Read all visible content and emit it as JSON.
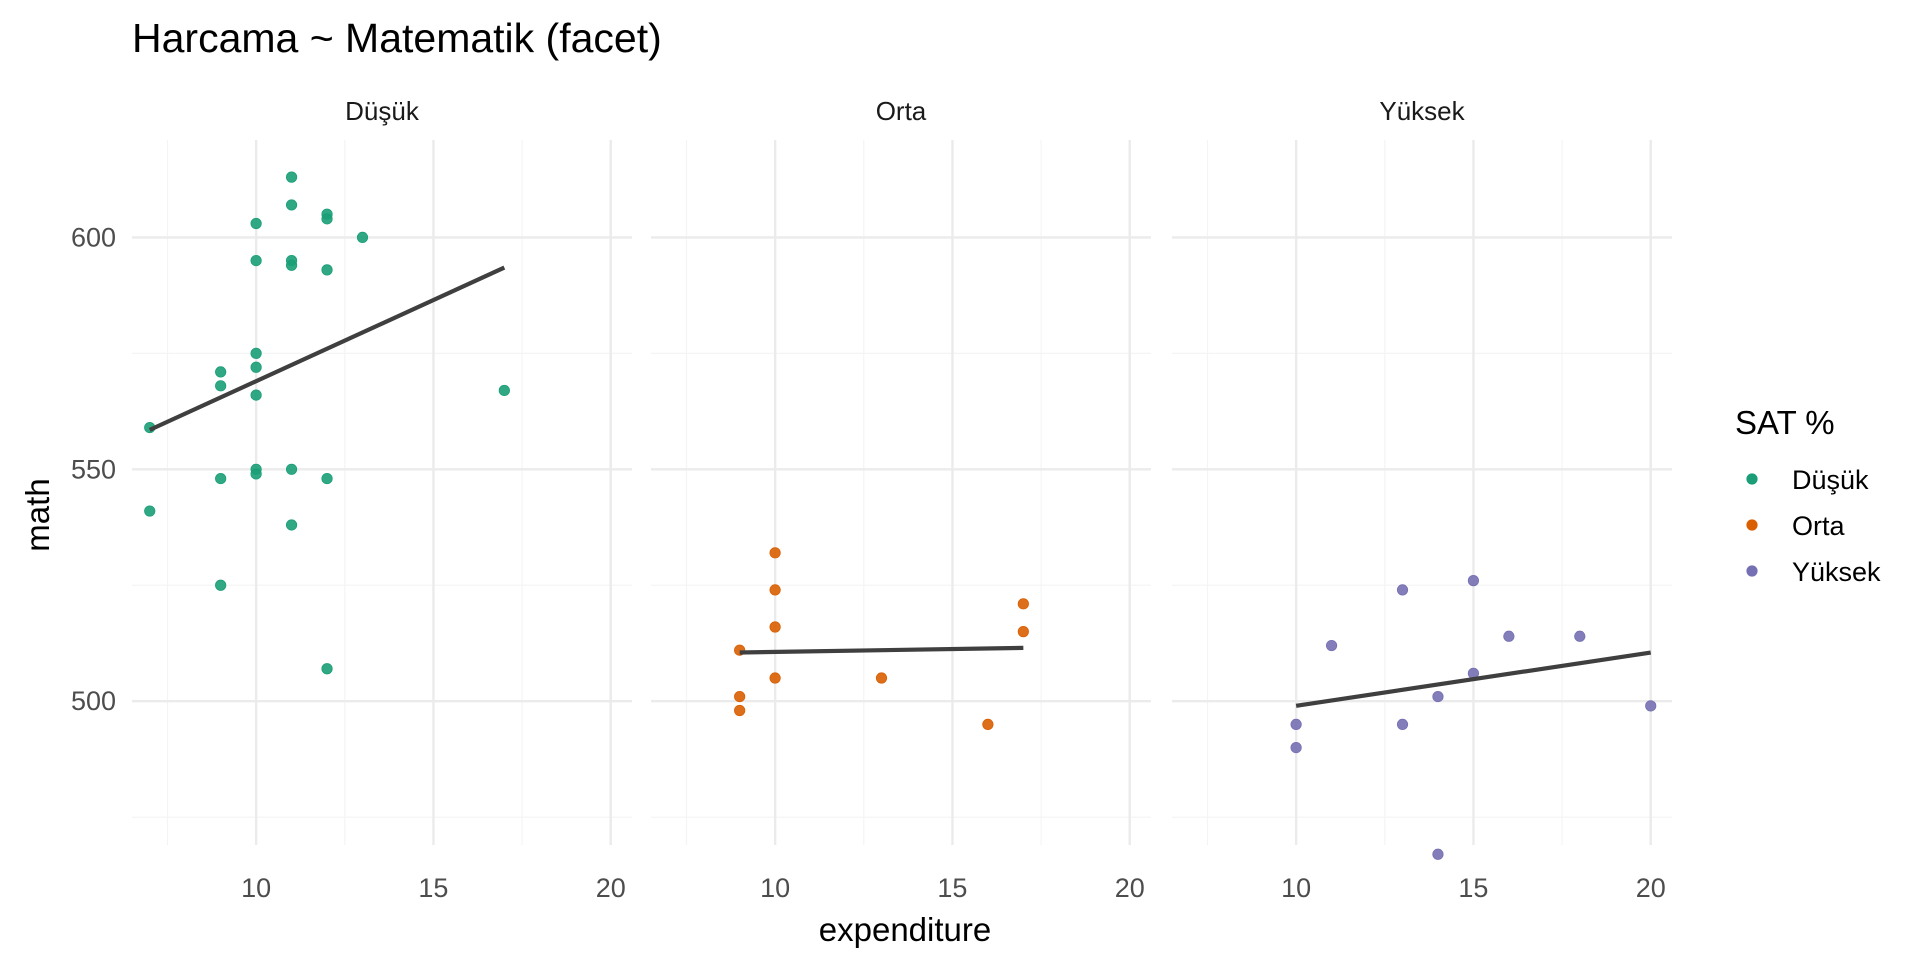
{
  "chart_data": {
    "type": "scatter",
    "title": "Harcama ~ Matematik (facet)",
    "xlabel": "expenditure",
    "ylabel": "math",
    "xlim": [
      6.5,
      20.6
    ],
    "ylim": [
      469,
      621
    ],
    "x_ticks": [
      10,
      15,
      20
    ],
    "y_ticks": [
      500,
      550,
      600
    ],
    "grid": true,
    "legend": {
      "title": "SAT %",
      "position": "right"
    },
    "facets": [
      {
        "name": "Düşük",
        "color": "#1B9E77",
        "points": [
          [
            7,
            559
          ],
          [
            7,
            541
          ],
          [
            9,
            571
          ],
          [
            9,
            568
          ],
          [
            9,
            548
          ],
          [
            9,
            525
          ],
          [
            10,
            603
          ],
          [
            10,
            595
          ],
          [
            10,
            575
          ],
          [
            10,
            572
          ],
          [
            10,
            566
          ],
          [
            10,
            550
          ],
          [
            10,
            549
          ],
          [
            11,
            613
          ],
          [
            11,
            607
          ],
          [
            11,
            595
          ],
          [
            11,
            594
          ],
          [
            11,
            550
          ],
          [
            11,
            538
          ],
          [
            12,
            605
          ],
          [
            12,
            604
          ],
          [
            12,
            593
          ],
          [
            12,
            548
          ],
          [
            12,
            507
          ],
          [
            13,
            600
          ],
          [
            17,
            567
          ]
        ],
        "fit": {
          "x": [
            7,
            17
          ],
          "y": [
            558.5,
            593.5
          ]
        }
      },
      {
        "name": "Orta",
        "color": "#D95F02",
        "points": [
          [
            9,
            511
          ],
          [
            9,
            501
          ],
          [
            9,
            498
          ],
          [
            10,
            532
          ],
          [
            10,
            524
          ],
          [
            10,
            516
          ],
          [
            10,
            505
          ],
          [
            13,
            505
          ],
          [
            16,
            495
          ],
          [
            17,
            521
          ],
          [
            17,
            515
          ]
        ],
        "fit": {
          "x": [
            9,
            17
          ],
          "y": [
            510.5,
            511.5
          ]
        }
      },
      {
        "name": "Yüksek",
        "color": "#7570B3",
        "points": [
          [
            10,
            495
          ],
          [
            10,
            490
          ],
          [
            11,
            512
          ],
          [
            13,
            524
          ],
          [
            13,
            495
          ],
          [
            14,
            501
          ],
          [
            14,
            467
          ],
          [
            15,
            526
          ],
          [
            15,
            506
          ],
          [
            16,
            514
          ],
          [
            18,
            514
          ],
          [
            20,
            499
          ]
        ],
        "fit": {
          "x": [
            10,
            20
          ],
          "y": [
            499,
            510.5
          ]
        }
      }
    ]
  }
}
